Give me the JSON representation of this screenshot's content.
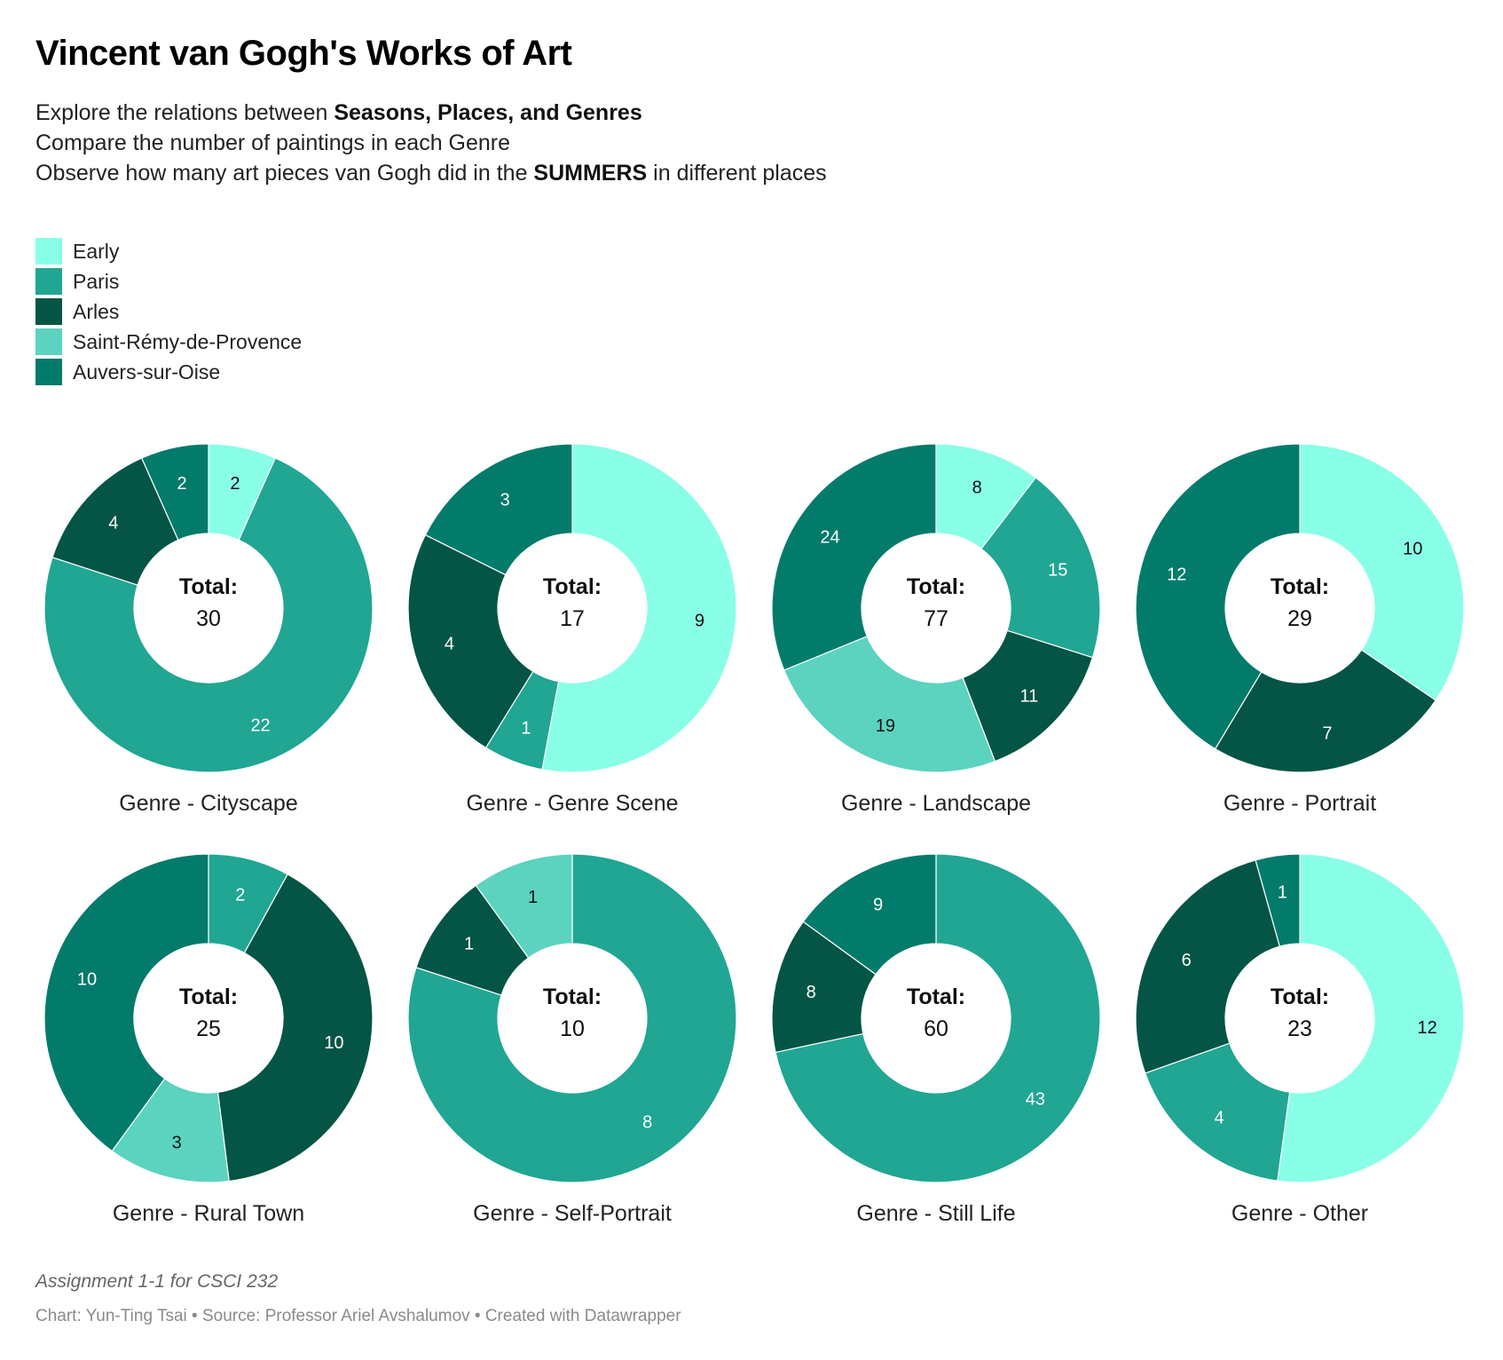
{
  "title": "Vincent van Gogh's Works of Art",
  "subtitle": {
    "line1_pre": "Explore the relations between ",
    "line1_bold": "Seasons, Places, and Genres",
    "line2": "Compare the number of paintings in each Genre",
    "line3_pre": "Observe how many art pieces van Gogh did in the ",
    "line3_bold": "SUMMERS",
    "line3_post": " in different places"
  },
  "legend": [
    {
      "name": "Early",
      "color": "#88ffe6"
    },
    {
      "name": "Paris",
      "color": "#20a693"
    },
    {
      "name": "Arles",
      "color": "#045545"
    },
    {
      "name": "Saint-Rémy-de-Provence",
      "color": "#5bd3bf"
    },
    {
      "name": "Auvers-sur-Oise",
      "color": "#037b6b"
    }
  ],
  "total_label": "Total:",
  "chart_data": [
    {
      "type": "pie",
      "subtype": "donut",
      "title": "Genre - Cityscape",
      "total": 30,
      "slices": [
        {
          "series": "Early",
          "value": 2
        },
        {
          "series": "Paris",
          "value": 22
        },
        {
          "series": "Arles",
          "value": 4
        },
        {
          "series": "Auvers-sur-Oise",
          "value": 2
        }
      ]
    },
    {
      "type": "pie",
      "subtype": "donut",
      "title": "Genre - Genre Scene",
      "total": 17,
      "slices": [
        {
          "series": "Early",
          "value": 9
        },
        {
          "series": "Paris",
          "value": 1
        },
        {
          "series": "Arles",
          "value": 4
        },
        {
          "series": "Auvers-sur-Oise",
          "value": 3
        }
      ]
    },
    {
      "type": "pie",
      "subtype": "donut",
      "title": "Genre - Landscape",
      "total": 77,
      "slices": [
        {
          "series": "Early",
          "value": 8
        },
        {
          "series": "Paris",
          "value": 15
        },
        {
          "series": "Arles",
          "value": 11
        },
        {
          "series": "Saint-Rémy-de-Provence",
          "value": 19
        },
        {
          "series": "Auvers-sur-Oise",
          "value": 24
        }
      ]
    },
    {
      "type": "pie",
      "subtype": "donut",
      "title": "Genre - Portrait",
      "total": 29,
      "slices": [
        {
          "series": "Early",
          "value": 10
        },
        {
          "series": "Arles",
          "value": 7
        },
        {
          "series": "Auvers-sur-Oise",
          "value": 12
        }
      ]
    },
    {
      "type": "pie",
      "subtype": "donut",
      "title": "Genre - Rural Town",
      "total": 25,
      "slices": [
        {
          "series": "Paris",
          "value": 2
        },
        {
          "series": "Arles",
          "value": 10
        },
        {
          "series": "Saint-Rémy-de-Provence",
          "value": 3
        },
        {
          "series": "Auvers-sur-Oise",
          "value": 10
        }
      ]
    },
    {
      "type": "pie",
      "subtype": "donut",
      "title": "Genre - Self-Portrait",
      "total": 10,
      "slices": [
        {
          "series": "Paris",
          "value": 8
        },
        {
          "series": "Arles",
          "value": 1
        },
        {
          "series": "Saint-Rémy-de-Provence",
          "value": 1
        }
      ]
    },
    {
      "type": "pie",
      "subtype": "donut",
      "title": "Genre - Still Life",
      "total": 60,
      "slices": [
        {
          "series": "Paris",
          "value": 43
        },
        {
          "series": "Arles",
          "value": 8
        },
        {
          "series": "Auvers-sur-Oise",
          "value": 9
        }
      ]
    },
    {
      "type": "pie",
      "subtype": "donut",
      "title": "Genre - Other",
      "total": 23,
      "slices": [
        {
          "series": "Early",
          "value": 12
        },
        {
          "series": "Paris",
          "value": 4
        },
        {
          "series": "Arles",
          "value": 6
        },
        {
          "series": "Auvers-sur-Oise",
          "value": 1
        }
      ]
    }
  ],
  "notes": "Assignment 1-1 for CSCI 232",
  "byline": "Chart: Yun-Ting Tsai • Source: Professor Ariel Avshalumov • Created with Datawrapper"
}
